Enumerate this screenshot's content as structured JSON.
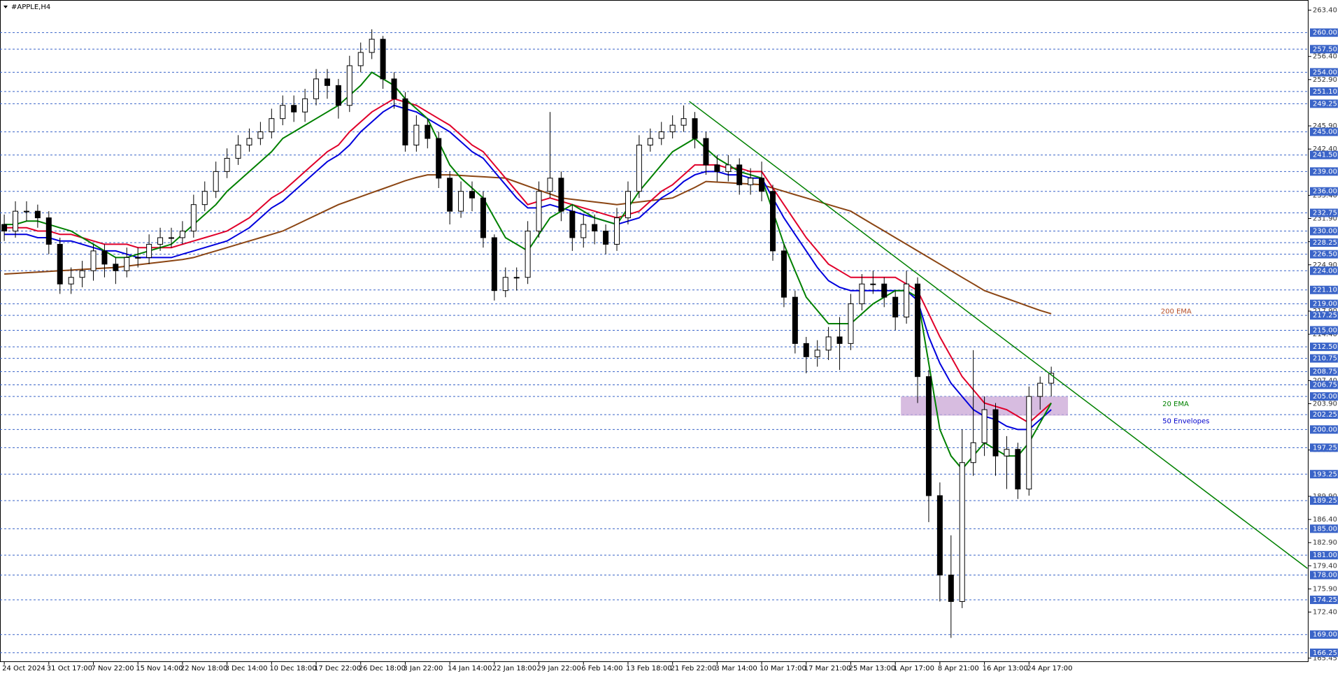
{
  "chart_data": {
    "type": "candlestick",
    "title": "#APPLE,H4",
    "categories": [
      "24 Oct 2024",
      null,
      null,
      null,
      "31 Oct 17:00",
      null,
      null,
      null,
      "7 Nov 22:00",
      null,
      null,
      null,
      "15 Nov 14:00",
      null,
      null,
      null,
      "22 Nov 18:00",
      null,
      null,
      null,
      "3 Dec 14:00",
      null,
      null,
      null,
      "10 Dec 18:00",
      null,
      null,
      null,
      "17 Dec 22:00",
      null,
      null,
      null,
      "26 Dec 18:00",
      null,
      null,
      null,
      "3 Jan 22:00",
      null,
      null,
      null,
      "14 Jan 14:00",
      null,
      null,
      null,
      "22 Jan 18:00",
      null,
      null,
      null,
      "29 Jan 22:00",
      null,
      null,
      null,
      "6 Feb 14:00",
      null,
      null,
      null,
      "13 Feb 18:00",
      null,
      null,
      null,
      "21 Feb 22:00",
      null,
      null,
      null,
      "3 Mar 14:00",
      null,
      null,
      null,
      "10 Mar 17:00",
      null,
      null,
      null,
      "17 Mar 21:00",
      null,
      null,
      null,
      "25 Mar 13:00",
      null,
      null,
      null,
      "1 Apr 17:00",
      null,
      null,
      null,
      "8 Apr 21:00",
      null,
      null,
      null,
      "16 Apr 13:00",
      null,
      null,
      null,
      "24 Apr 17:00",
      null,
      null
    ],
    "open": [
      231,
      230,
      233,
      233,
      232,
      228,
      222,
      223,
      224,
      227,
      225,
      224,
      226,
      226,
      228,
      229,
      229,
      230,
      234,
      236,
      239,
      241,
      243,
      244,
      245,
      247,
      249,
      248,
      250,
      253,
      252,
      249,
      255,
      257,
      259,
      253,
      250,
      243,
      246,
      244,
      238,
      233,
      236,
      235,
      229,
      221,
      223,
      223,
      230,
      236,
      238,
      233,
      229,
      231,
      230,
      228,
      232,
      236,
      243,
      244,
      245,
      246,
      247,
      244,
      240,
      239,
      240,
      237,
      238,
      236,
      227,
      220,
      213,
      211,
      212,
      214,
      213,
      219,
      222,
      222,
      220,
      217,
      222,
      208,
      190,
      178,
      174,
      195,
      198,
      203,
      196,
      197,
      191,
      205,
      207
    ],
    "high": [
      232.5,
      234.5,
      234.5,
      234,
      233,
      229,
      224.5,
      225.5,
      228,
      228,
      226,
      227.5,
      227.5,
      229.5,
      230.5,
      230.5,
      231.5,
      235.5,
      237.5,
      240.5,
      242.5,
      244.5,
      245.5,
      246.5,
      248.5,
      250.5,
      250.5,
      251.5,
      254.5,
      254.5,
      253,
      256.5,
      258.5,
      260.5,
      259.5,
      254,
      251,
      247.5,
      247,
      245,
      239,
      237.5,
      237.5,
      236,
      229.5,
      224.5,
      224.5,
      231.5,
      237.5,
      248,
      239,
      234,
      232.5,
      232.5,
      231,
      233.5,
      237.5,
      244.5,
      245.5,
      246.5,
      247.5,
      249,
      248,
      245,
      241.5,
      241.5,
      241,
      239.5,
      240.5,
      237,
      228,
      221,
      214,
      213.5,
      215.5,
      217,
      220.5,
      223.5,
      224,
      223,
      221,
      224,
      223,
      209,
      192,
      184,
      200,
      212,
      205,
      204,
      199,
      198,
      206.5,
      208,
      209.5
    ],
    "low": [
      228.5,
      229,
      231.5,
      230.5,
      226.5,
      220.5,
      220.5,
      221.5,
      222.5,
      223,
      222,
      223,
      224.5,
      225,
      227,
      227.5,
      228,
      229,
      233,
      235,
      238,
      240,
      242,
      243,
      244,
      246,
      246.5,
      246.5,
      249,
      250,
      247,
      248,
      254,
      256,
      251.5,
      248.5,
      242,
      242,
      242.5,
      236.5,
      231,
      232,
      233,
      227.5,
      219.5,
      220,
      221,
      222,
      229,
      235,
      231.5,
      227,
      227.5,
      228,
      226.5,
      227,
      231,
      235,
      242,
      243,
      244,
      245,
      242.5,
      238.5,
      237.5,
      237.5,
      235.5,
      235.5,
      234.5,
      225.5,
      218.5,
      211.5,
      208.5,
      209.5,
      210.5,
      209,
      212,
      218,
      220.5,
      218.5,
      215,
      216,
      204,
      186,
      174,
      168.5,
      173,
      193,
      196,
      193,
      191,
      189.5,
      190,
      203,
      205
    ],
    "close": [
      230,
      233,
      233,
      232,
      228,
      222,
      223,
      224,
      227,
      225,
      224,
      226,
      226,
      228,
      229,
      229,
      230,
      234,
      236,
      239,
      241,
      243,
      244,
      245,
      247,
      249,
      248,
      250,
      253,
      252,
      249,
      255,
      257,
      259,
      253,
      250,
      243,
      246,
      244,
      238,
      233,
      236,
      235,
      229,
      221,
      223,
      223,
      230,
      236,
      238,
      233,
      229,
      231,
      230,
      228,
      232,
      236,
      243,
      244,
      245,
      246,
      247,
      244,
      240,
      239,
      240,
      237,
      238,
      236,
      227,
      220,
      213,
      211,
      212,
      214,
      213,
      219,
      222,
      222,
      220,
      217,
      222,
      208,
      190,
      178,
      174,
      195,
      198,
      203,
      196,
      197,
      191,
      205,
      207,
      208.5
    ],
    "candle_color": "#000000",
    "series": [
      {
        "color": "#8b4513",
        "values": [
          223.5,
          223.6,
          223.7,
          223.8,
          223.9,
          224,
          224.1,
          224.2,
          224.3,
          224.4,
          224.5,
          224.7,
          224.9,
          225.1,
          225.3,
          225.5,
          225.7,
          226,
          226.5,
          227,
          227.5,
          228,
          228.5,
          229,
          229.5,
          230,
          230.8,
          231.6,
          232.4,
          233.2,
          234,
          234.6,
          235.2,
          235.8,
          236.4,
          237,
          237.6,
          238.1,
          238.5,
          238.5,
          238.5,
          238.4,
          238.3,
          238.2,
          238.1,
          238,
          237.4,
          236.8,
          236.2,
          235.6,
          235,
          234.8,
          234.6,
          234.4,
          234.2,
          234,
          234.2,
          234.4,
          234.6,
          234.8,
          235,
          235.8,
          236.6,
          237.5,
          237.4,
          237.3,
          237.2,
          237.1,
          237,
          236.5,
          236,
          235.5,
          235,
          234.5,
          234,
          233.5,
          233,
          232,
          231,
          230,
          229,
          228,
          227,
          226,
          225,
          224,
          223,
          222,
          221,
          220.4,
          219.8,
          219.2,
          218.6,
          218,
          217.5
        ]
      },
      {
        "color": "#0000dd",
        "values": [
          229.5,
          229.5,
          229.5,
          229,
          229,
          228.5,
          228.5,
          228,
          227.5,
          227,
          227,
          226.5,
          226,
          226,
          226,
          226,
          226.5,
          227,
          227.5,
          228,
          228.5,
          229.5,
          230.5,
          232,
          233.5,
          234.5,
          236,
          237.5,
          239,
          240.5,
          241.5,
          243,
          245,
          246.5,
          248,
          249,
          248.5,
          248,
          247,
          246,
          245,
          243.5,
          242,
          241,
          239,
          237,
          235,
          233.5,
          233.5,
          234,
          233.5,
          233,
          232.5,
          232,
          231.5,
          231,
          231.5,
          232,
          233.5,
          235,
          236,
          237.5,
          238.5,
          239,
          239,
          238.5,
          238.5,
          238,
          238,
          235,
          232,
          229.5,
          227,
          224.5,
          222.5,
          221.5,
          221,
          221,
          221,
          221,
          221,
          221,
          219.5,
          214,
          210,
          207,
          205,
          203,
          202,
          201.5,
          200.5,
          200,
          200,
          201.5,
          203
        ]
      },
      {
        "color": "#e0002a",
        "values": [
          230.5,
          230.5,
          230.5,
          230,
          230,
          229.5,
          229.5,
          229,
          228.5,
          228,
          228,
          228,
          227.5,
          227.5,
          227.5,
          227.5,
          228,
          228.5,
          229,
          229.5,
          230,
          231,
          232,
          233.5,
          235,
          236,
          237.5,
          239,
          240.5,
          242,
          243,
          245,
          246.5,
          248,
          249,
          250,
          249.5,
          249,
          248,
          247,
          246,
          244.5,
          243,
          242,
          240,
          238,
          236,
          234,
          234.5,
          235,
          234.5,
          234,
          233.5,
          233,
          232.5,
          232,
          232.5,
          233,
          234.5,
          236,
          237,
          238.5,
          240,
          240,
          240,
          239.5,
          239.5,
          239,
          239,
          236.5,
          234,
          231.5,
          229,
          227,
          225,
          224,
          223,
          223,
          223,
          223,
          223,
          222,
          221,
          217.5,
          214,
          211,
          208,
          206,
          204,
          203.5,
          203,
          202,
          201,
          202.5,
          204
        ]
      },
      {
        "color": "#008000",
        "values": [
          231,
          231,
          231.5,
          231.5,
          231,
          230.5,
          230,
          229,
          228,
          227,
          226,
          226,
          226.5,
          227,
          227.5,
          228,
          229.5,
          231,
          232.5,
          234,
          236,
          237.5,
          239,
          240.5,
          242,
          244,
          245,
          246,
          247,
          248,
          249,
          250.5,
          252,
          254,
          253,
          252,
          250,
          248.5,
          247,
          243.5,
          240,
          238,
          236.5,
          235,
          232,
          229,
          228,
          227,
          229.5,
          232,
          233,
          234,
          233,
          232,
          231.5,
          231,
          233.5,
          236,
          238,
          240,
          242,
          243,
          244,
          242.5,
          241,
          240,
          239,
          238.5,
          238,
          233,
          228,
          224,
          220,
          218,
          216,
          216,
          216,
          217.5,
          219,
          220,
          221,
          221,
          220,
          210,
          200,
          196,
          194,
          196,
          198,
          197,
          196,
          196,
          198,
          201,
          204
        ]
      }
    ],
    "trendline": {
      "color": "#008000",
      "x": [
        61.5,
        117
      ],
      "y": [
        249.6,
        179
      ]
    },
    "zone": {
      "color": "#c9a6d6",
      "x": [
        80.5,
        95.5
      ],
      "y": [
        202.1,
        205
      ]
    },
    "annotations": [
      {
        "text": "200 EMA",
        "color": "#b5502a"
      },
      {
        "text": "20 EMA",
        "color": "#008000"
      },
      {
        "text": "50 Envelopes",
        "color": "#0000cc"
      }
    ],
    "ylim": [
      164.85,
      264.93
    ],
    "yticks": [
      {
        "value": 263.4,
        "label": "263.40"
      },
      {
        "value": 256.4,
        "label": "256.40"
      },
      {
        "value": 252.9,
        "label": "252.90"
      },
      {
        "value": 245.9,
        "label": "245.90"
      },
      {
        "value": 242.4,
        "label": "242.40"
      },
      {
        "value": 235.4,
        "label": "235.40"
      },
      {
        "value": 231.9,
        "label": "231.90"
      },
      {
        "value": 228.4,
        "label": "228.40"
      },
      {
        "value": 224.9,
        "label": "224.90"
      },
      {
        "value": 217.9,
        "label": "217.90"
      },
      {
        "value": 214.4,
        "label": "214.40"
      },
      {
        "value": 207.4,
        "label": "207.40"
      },
      {
        "value": 203.9,
        "label": "203.90"
      },
      {
        "value": 196.9,
        "label": "196.90"
      },
      {
        "value": 189.9,
        "label": "189.90"
      },
      {
        "value": 186.4,
        "label": "186.40"
      },
      {
        "value": 182.9,
        "label": "182.90"
      },
      {
        "value": 179.4,
        "label": "179.40"
      },
      {
        "value": 175.9,
        "label": "175.90"
      },
      {
        "value": 172.4,
        "label": "172.40"
      },
      {
        "value": 165.45,
        "label": "165.45"
      }
    ],
    "levels": [
      {
        "value": 260,
        "label": "260.00"
      },
      {
        "value": 257.5,
        "label": "257.50"
      },
      {
        "value": 254,
        "label": "254.00"
      },
      {
        "value": 251.1,
        "label": "251.10"
      },
      {
        "value": 249.25,
        "label": "249.25"
      },
      {
        "value": 245,
        "label": "245.00"
      },
      {
        "value": 241.5,
        "label": "241.50"
      },
      {
        "value": 239,
        "label": "239.00"
      },
      {
        "value": 236,
        "label": "236.00"
      },
      {
        "value": 232.75,
        "label": "232.75"
      },
      {
        "value": 230,
        "label": "230.00"
      },
      {
        "value": 228.25,
        "label": "228.25"
      },
      {
        "value": 226.5,
        "label": "226.50"
      },
      {
        "value": 224,
        "label": "224.00"
      },
      {
        "value": 221.1,
        "label": "221.10"
      },
      {
        "value": 219,
        "label": "219.00"
      },
      {
        "value": 217.25,
        "label": "217.25"
      },
      {
        "value": 215,
        "label": "215.00"
      },
      {
        "value": 212.5,
        "label": "212.50"
      },
      {
        "value": 210.75,
        "label": "210.75"
      },
      {
        "value": 208.75,
        "label": "208.75"
      },
      {
        "value": 206.75,
        "label": "206.75"
      },
      {
        "value": 205,
        "label": "205.00"
      },
      {
        "value": 202.25,
        "label": "202.25"
      },
      {
        "value": 200,
        "label": "200.00"
      },
      {
        "value": 197.25,
        "label": "197.25"
      },
      {
        "value": 193.25,
        "label": "193.25"
      },
      {
        "value": 189.25,
        "label": "189.25"
      },
      {
        "value": 185,
        "label": "185.00"
      },
      {
        "value": 181,
        "label": "181.00"
      },
      {
        "value": 178,
        "label": "178.00"
      },
      {
        "value": 174.25,
        "label": "174.25"
      },
      {
        "value": 169,
        "label": "169.00"
      },
      {
        "value": 166.25,
        "label": "166.25"
      }
    ],
    "level_color": "#3a64c8"
  }
}
